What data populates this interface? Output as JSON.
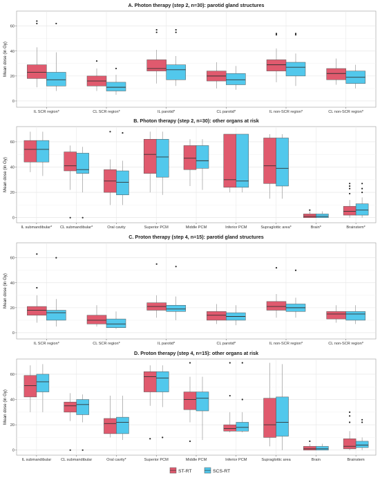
{
  "legend": [
    {
      "name": "ST-RT",
      "color": "#e05a6e"
    },
    {
      "name": "SCS-RT",
      "color": "#52c8ec"
    }
  ],
  "chart_data": [
    {
      "type": "box",
      "title": "A. Photon therapy (step 2, n=30): parotid gland structures",
      "ylabel": "Mean dose (in Gy)",
      "ylim": [
        -5,
        72
      ],
      "yticks": [
        0,
        20,
        40,
        60
      ],
      "grid": true,
      "categories": [
        "IL SCR region*",
        "CL SCR region*",
        "IL parotid*",
        "CL parotid*",
        "IL non-SCR region*",
        "CL non-SCR region*"
      ],
      "series": [
        {
          "name": "ST-RT",
          "boxes": [
            {
              "min": 11,
              "q1": 18,
              "median": 23,
              "q3": 29,
              "max": 43,
              "outliers": [
                62,
                64
              ]
            },
            {
              "min": 8,
              "q1": 12,
              "median": 16,
              "q3": 20,
              "max": 26,
              "outliers": [
                32
              ]
            },
            {
              "min": 14,
              "q1": 24,
              "median": 26,
              "q3": 33,
              "max": 41,
              "outliers": [
                55,
                57
              ]
            },
            {
              "min": 10,
              "q1": 16,
              "median": 20,
              "q3": 24,
              "max": 31,
              "outliers": []
            },
            {
              "min": 15,
              "q1": 24,
              "median": 29,
              "q3": 33,
              "max": 42,
              "outliers": [
                53,
                54
              ]
            },
            {
              "min": 13,
              "q1": 17,
              "median": 22,
              "q3": 26,
              "max": 34,
              "outliers": []
            }
          ]
        },
        {
          "name": "SCS-RT",
          "boxes": [
            {
              "min": 8,
              "q1": 12,
              "median": 17,
              "q3": 23,
              "max": 39,
              "outliers": [
                62
              ]
            },
            {
              "min": 5,
              "q1": 8,
              "median": 11,
              "q3": 15,
              "max": 21,
              "outliers": [
                26
              ]
            },
            {
              "min": 12,
              "q1": 17,
              "median": 25,
              "q3": 29,
              "max": 36,
              "outliers": [
                55,
                57
              ]
            },
            {
              "min": 9,
              "q1": 13,
              "median": 17,
              "q3": 22,
              "max": 28,
              "outliers": []
            },
            {
              "min": 12,
              "q1": 20,
              "median": 27,
              "q3": 31,
              "max": 38,
              "outliers": [
                53,
                54
              ]
            },
            {
              "min": 10,
              "q1": 14,
              "median": 19,
              "q3": 24,
              "max": 29,
              "outliers": []
            }
          ]
        }
      ]
    },
    {
      "type": "box",
      "title": "B. Photon therapy (step 2, n=30): other organs at risk",
      "ylabel": "Mean dose (in Gy)",
      "ylim": [
        -4,
        72
      ],
      "yticks": [
        0,
        20,
        40,
        60
      ],
      "grid": true,
      "categories": [
        "IL submandibular*",
        "CL submandibular*",
        "Oral cavity",
        "Superior PCM",
        "Middle PCM",
        "Inferior PCM",
        "Supraglottic area*",
        "Brain*",
        "Brainstem*"
      ],
      "series": [
        {
          "name": "ST-RT",
          "boxes": [
            {
              "min": 36,
              "q1": 44,
              "median": 54,
              "q3": 61,
              "max": 68,
              "outliers": []
            },
            {
              "min": 22,
              "q1": 37,
              "median": 41,
              "q3": 52,
              "max": 57,
              "outliers": [
                0
              ]
            },
            {
              "min": 10,
              "q1": 20,
              "median": 29,
              "q3": 38,
              "max": 46,
              "outliers": [
                68
              ]
            },
            {
              "min": 20,
              "q1": 35,
              "median": 50,
              "q3": 62,
              "max": 68,
              "outliers": []
            },
            {
              "min": 25,
              "q1": 38,
              "median": 47,
              "q3": 57,
              "max": 62,
              "outliers": []
            },
            {
              "min": 20,
              "q1": 24,
              "median": 30,
              "q3": 66,
              "max": 66,
              "outliers": []
            },
            {
              "min": 15,
              "q1": 27,
              "median": 41,
              "q3": 63,
              "max": 66,
              "outliers": []
            },
            {
              "min": 0,
              "q1": 0,
              "median": 1,
              "q3": 3,
              "max": 5,
              "outliers": [
                6
              ]
            },
            {
              "min": 0,
              "q1": 2,
              "median": 5,
              "q3": 9,
              "max": 14,
              "outliers": [
                19,
                23,
                25,
                27
              ]
            }
          ]
        },
        {
          "name": "SCS-RT",
          "boxes": [
            {
              "min": 33,
              "q1": 44,
              "median": 54,
              "q3": 61,
              "max": 68,
              "outliers": []
            },
            {
              "min": 20,
              "q1": 35,
              "median": 38,
              "q3": 51,
              "max": 56,
              "outliers": [
                0
              ]
            },
            {
              "min": 10,
              "q1": 18,
              "median": 28,
              "q3": 37,
              "max": 45,
              "outliers": [
                67
              ]
            },
            {
              "min": 18,
              "q1": 32,
              "median": 48,
              "q3": 62,
              "max": 68,
              "outliers": []
            },
            {
              "min": 22,
              "q1": 39,
              "median": 45,
              "q3": 57,
              "max": 62,
              "outliers": []
            },
            {
              "min": 20,
              "q1": 24,
              "median": 29,
              "q3": 66,
              "max": 66,
              "outliers": []
            },
            {
              "min": 15,
              "q1": 25,
              "median": 39,
              "q3": 63,
              "max": 66,
              "outliers": []
            },
            {
              "min": 0,
              "q1": 0,
              "median": 1,
              "q3": 3,
              "max": 5,
              "outliers": []
            },
            {
              "min": 0,
              "q1": 2,
              "median": 6,
              "q3": 11,
              "max": 16,
              "outliers": [
                20,
                23,
                27
              ]
            }
          ]
        }
      ]
    },
    {
      "type": "box",
      "title": "C. Proton therapy (step 4, n=15): parotid gland structures",
      "ylabel": "Mean dose (in Gy)",
      "ylim": [
        -5,
        72
      ],
      "yticks": [
        0,
        20,
        40,
        60
      ],
      "grid": true,
      "categories": [
        "IL SCR region*",
        "CL SCR region*",
        "IL parotid*",
        "CL parotid*",
        "IL non-SCR region*",
        "CL non-SCR region*"
      ],
      "series": [
        {
          "name": "ST-RT",
          "boxes": [
            {
              "min": 8,
              "q1": 14,
              "median": 18,
              "q3": 21,
              "max": 30,
              "outliers": [
                36,
                63
              ]
            },
            {
              "min": 5,
              "q1": 7,
              "median": 10,
              "q3": 14,
              "max": 22,
              "outliers": []
            },
            {
              "min": 12,
              "q1": 18,
              "median": 21,
              "q3": 24,
              "max": 30,
              "outliers": [
                55
              ]
            },
            {
              "min": 7,
              "q1": 10,
              "median": 14,
              "q3": 17,
              "max": 23,
              "outliers": []
            },
            {
              "min": 12,
              "q1": 18,
              "median": 21,
              "q3": 25,
              "max": 31,
              "outliers": [
                52
              ]
            },
            {
              "min": 8,
              "q1": 11,
              "median": 15,
              "q3": 17,
              "max": 22,
              "outliers": []
            }
          ]
        },
        {
          "name": "SCS-RT",
          "boxes": [
            {
              "min": 5,
              "q1": 10,
              "median": 16,
              "q3": 18,
              "max": 27,
              "outliers": [
                60
              ]
            },
            {
              "min": 3,
              "q1": 4,
              "median": 7,
              "q3": 11,
              "max": 17,
              "outliers": []
            },
            {
              "min": 10,
              "q1": 17,
              "median": 19,
              "q3": 22,
              "max": 29,
              "outliers": [
                53
              ]
            },
            {
              "min": 6,
              "q1": 10,
              "median": 13,
              "q3": 16,
              "max": 22,
              "outliers": []
            },
            {
              "min": 12,
              "q1": 17,
              "median": 20,
              "q3": 23,
              "max": 28,
              "outliers": [
                50
              ]
            },
            {
              "min": 7,
              "q1": 10,
              "median": 15,
              "q3": 17,
              "max": 22,
              "outliers": []
            }
          ]
        }
      ]
    },
    {
      "type": "box",
      "title": "D. Proton therapy (step 4, n=15): other organs at risk",
      "ylabel": "Mean dose (in Gy)",
      "ylim": [
        -4,
        72
      ],
      "yticks": [
        0,
        20,
        40,
        60
      ],
      "grid": true,
      "categories": [
        "IL submandibular",
        "CL submandibular",
        "Oral cavity*",
        "Superior PCM",
        "Middle PCM",
        "Inferior PCM",
        "Supraglottic area",
        "Brain",
        "Brainstem"
      ],
      "series": [
        {
          "name": "ST-RT",
          "boxes": [
            {
              "min": 30,
              "q1": 42,
              "median": 51,
              "q3": 59,
              "max": 67,
              "outliers": []
            },
            {
              "min": 23,
              "q1": 30,
              "median": 35,
              "q3": 38,
              "max": 45,
              "outliers": [
                0
              ]
            },
            {
              "min": 10,
              "q1": 13,
              "median": 21,
              "q3": 25,
              "max": 43,
              "outliers": []
            },
            {
              "min": 35,
              "q1": 46,
              "median": 58,
              "q3": 62,
              "max": 67,
              "outliers": [
                9
              ]
            },
            {
              "min": 22,
              "q1": 32,
              "median": 40,
              "q3": 46,
              "max": 58,
              "outliers": [
                7,
                69
              ]
            },
            {
              "min": 14,
              "q1": 15,
              "median": 17,
              "q3": 20,
              "max": 30,
              "outliers": [
                43,
                69
              ]
            },
            {
              "min": 3,
              "q1": 10,
              "median": 20,
              "q3": 41,
              "max": 69,
              "outliers": []
            },
            {
              "min": 0,
              "q1": 0,
              "median": 1,
              "q3": 3,
              "max": 5,
              "outliers": [
                7
              ]
            },
            {
              "min": 0,
              "q1": 1,
              "median": 3,
              "q3": 9,
              "max": 15,
              "outliers": [
                22,
                27,
                30
              ]
            }
          ]
        },
        {
          "name": "SCS-RT",
          "boxes": [
            {
              "min": 30,
              "q1": 46,
              "median": 54,
              "q3": 60,
              "max": 68,
              "outliers": []
            },
            {
              "min": 22,
              "q1": 28,
              "median": 36,
              "q3": 40,
              "max": 44,
              "outliers": [
                0
              ]
            },
            {
              "min": 8,
              "q1": 13,
              "median": 22,
              "q3": 26,
              "max": 43,
              "outliers": []
            },
            {
              "min": 34,
              "q1": 46,
              "median": 57,
              "q3": 62,
              "max": 67,
              "outliers": [
                10
              ]
            },
            {
              "min": 8,
              "q1": 31,
              "median": 41,
              "q3": 46,
              "max": 58,
              "outliers": []
            },
            {
              "min": 14,
              "q1": 15,
              "median": 18,
              "q3": 22,
              "max": 30,
              "outliers": [
                40,
                69
              ]
            },
            {
              "min": 0,
              "q1": 11,
              "median": 22,
              "q3": 42,
              "max": 68,
              "outliers": []
            },
            {
              "min": 0,
              "q1": 0,
              "median": 1,
              "q3": 3,
              "max": 5,
              "outliers": []
            },
            {
              "min": 0,
              "q1": 2,
              "median": 4,
              "q3": 7,
              "max": 10,
              "outliers": [
                22,
                24
              ]
            }
          ]
        }
      ]
    }
  ]
}
